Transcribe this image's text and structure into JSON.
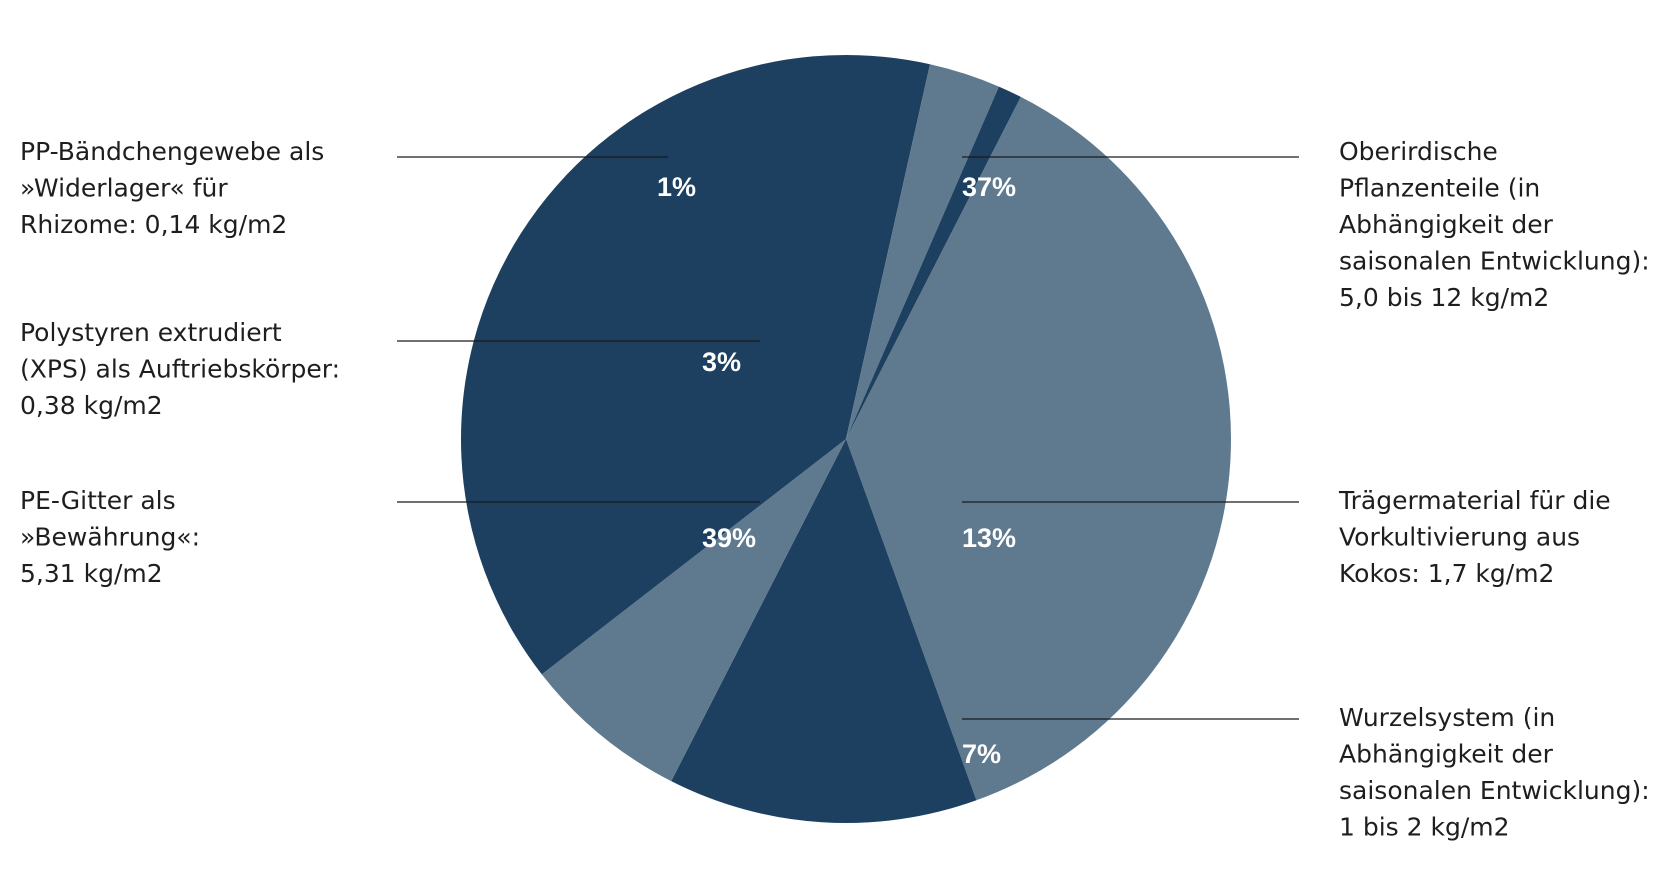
{
  "chart_data": {
    "type": "pie",
    "slices": [
      {
        "percent_label": "37%",
        "value": 37,
        "color": "#5f7a8f",
        "label_lines": [
          "Oberirdische",
          "Pflanzenteile (in",
          "Abhängigkeit der",
          "saisonalen Entwicklung):",
          "5,0 bis 12 kg/m2"
        ]
      },
      {
        "percent_label": "13%",
        "value": 13,
        "color": "#1e4060",
        "label_lines": [
          "Trägermaterial für die",
          "Vorkultivierung aus",
          "Kokos: 1,7 kg/m2"
        ]
      },
      {
        "percent_label": "7%",
        "value": 7,
        "color": "#5f7a8f",
        "label_lines": [
          "Wurzelsystem (in",
          "Abhängigkeit der",
          "saisonalen Entwicklung):",
          "1 bis 2 kg/m2"
        ]
      },
      {
        "percent_label": "39%",
        "value": 39,
        "color": "#1e4060",
        "label_lines": [
          "PE-Gitter als",
          "»Bewährung«:",
          "5,31 kg/m2"
        ]
      },
      {
        "percent_label": "3%",
        "value": 3,
        "color": "#5f7a8f",
        "label_lines": [
          "Polystyren extrudiert",
          "(XPS) als Auftriebskörper:",
          "0,38 kg/m2"
        ]
      },
      {
        "percent_label": "1%",
        "value": 1,
        "color": "#1e4060",
        "label_lines": [
          "PP-Bändchengewebe als",
          "»Widerlager« für",
          "Rhizome: 0,14 kg/m2"
        ]
      }
    ]
  }
}
